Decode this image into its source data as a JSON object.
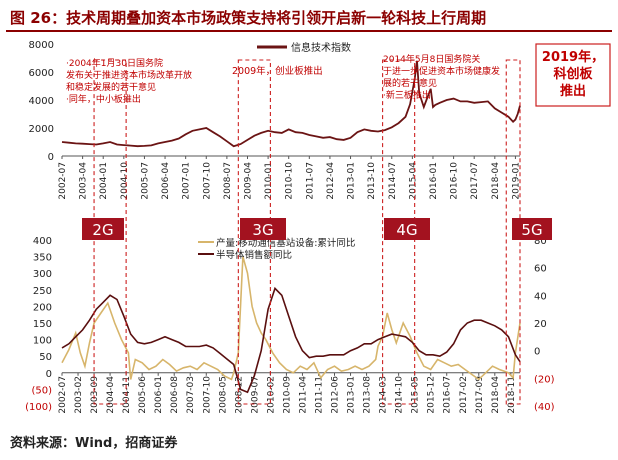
{
  "title": "图 26：技术周期叠加资本市场政策支持将引领开启新一轮科技上行周期",
  "source": "资料来源：Wind，招商证券",
  "colors": {
    "title": "#8b0000",
    "index_line": "#6b1414",
    "semi_line": "#5a0f0f",
    "equip_line": "#d7b56b",
    "dashed_box": "#cc1f1f",
    "gen_label_bg": "#a3121f",
    "callout_text": "#c00000"
  },
  "chart_data": [
    {
      "type": "line",
      "panel": "top",
      "series": [
        {
          "name": "信息技术指数",
          "x": [
            "2002-07",
            "2002-10",
            "2003-01",
            "2003-04",
            "2003-07",
            "2003-10",
            "2004-01",
            "2004-04",
            "2004-07",
            "2004-10",
            "2005-01",
            "2005-04",
            "2005-07",
            "2005-10",
            "2006-01",
            "2006-04",
            "2006-07",
            "2006-10",
            "2007-01",
            "2007-04",
            "2007-07",
            "2007-10",
            "2008-01",
            "2008-04",
            "2008-07",
            "2008-10",
            "2009-01",
            "2009-04",
            "2009-07",
            "2009-10",
            "2010-01",
            "2010-04",
            "2010-07",
            "2010-10",
            "2011-01",
            "2011-04",
            "2011-07",
            "2011-10",
            "2012-01",
            "2012-04",
            "2012-07",
            "2012-10",
            "2013-01",
            "2013-04",
            "2013-07",
            "2013-10",
            "2014-01",
            "2014-04",
            "2014-07",
            "2014-10",
            "2015-01",
            "2015-03",
            "2015-05",
            "2015-06",
            "2015-07",
            "2015-09",
            "2015-12",
            "2016-01",
            "2016-02",
            "2016-04",
            "2016-07",
            "2016-10",
            "2017-01",
            "2017-04",
            "2017-07",
            "2017-10",
            "2018-01",
            "2018-04",
            "2018-07",
            "2018-10",
            "2018-12",
            "2019-01",
            "2019-02",
            "2019-03"
          ],
          "values": [
            1000,
            950,
            900,
            880,
            850,
            820,
            900,
            1000,
            820,
            780,
            740,
            700,
            720,
            760,
            900,
            1000,
            1100,
            1250,
            1550,
            1800,
            1900,
            2000,
            1700,
            1400,
            1050,
            700,
            850,
            1150,
            1450,
            1650,
            1800,
            1700,
            1650,
            1900,
            1700,
            1650,
            1500,
            1400,
            1300,
            1350,
            1200,
            1150,
            1300,
            1700,
            1900,
            1800,
            1750,
            1850,
            2050,
            2350,
            2800,
            3700,
            5500,
            6800,
            4500,
            3500,
            4800,
            3500,
            3650,
            3800,
            4000,
            4100,
            3900,
            3900,
            3800,
            3850,
            3900,
            3400,
            3100,
            2800,
            2450,
            2600,
            3000,
            3600
          ]
        }
      ],
      "yticks": [
        0,
        2000,
        4000,
        6000,
        8000
      ],
      "ylim": [
        0,
        8000
      ],
      "xticks": [
        "2002-07",
        "2003-04",
        "2004-01",
        "2004-10",
        "2005-07",
        "2006-04",
        "2007-01",
        "2007-10",
        "2008-07",
        "2009-04",
        "2010-01",
        "2010-10",
        "2011-07",
        "2012-04",
        "2013-01",
        "2013-10",
        "2014-07",
        "2015-04",
        "2016-01",
        "2016-10",
        "2017-07",
        "2018-04",
        "2019-01"
      ],
      "legend": "top-center"
    },
    {
      "type": "line",
      "panel": "bottom",
      "series": [
        {
          "name": "产量:移动通信基站设备:累计同比",
          "axis": "left",
          "x": [
            "2002-07",
            "2002-10",
            "2003-01",
            "2003-03",
            "2003-05",
            "2003-07",
            "2003-09",
            "2003-12",
            "2004-03",
            "2004-06",
            "2004-09",
            "2004-12",
            "2005-01",
            "2005-03",
            "2005-06",
            "2005-09",
            "2005-12",
            "2006-03",
            "2006-06",
            "2006-09",
            "2006-12",
            "2007-03",
            "2007-06",
            "2007-09",
            "2007-12",
            "2008-03",
            "2008-06",
            "2008-09",
            "2008-10",
            "2008-12",
            "2009-02",
            "2009-04",
            "2009-06",
            "2009-08",
            "2009-10",
            "2009-12",
            "2010-03",
            "2010-06",
            "2010-09",
            "2010-12",
            "2011-03",
            "2011-06",
            "2011-09",
            "2011-12",
            "2012-03",
            "2012-06",
            "2012-09",
            "2012-12",
            "2013-03",
            "2013-06",
            "2013-09",
            "2013-12",
            "2014-01",
            "2014-03",
            "2014-05",
            "2014-07",
            "2014-09",
            "2014-12",
            "2015-03",
            "2015-06",
            "2015-09",
            "2015-12",
            "2016-03",
            "2016-06",
            "2016-09",
            "2016-12",
            "2017-03",
            "2017-06",
            "2017-09",
            "2017-12",
            "2018-03",
            "2018-06",
            "2018-08",
            "2018-10",
            "2018-12",
            "2019-01",
            "2019-03"
          ],
          "values": [
            30,
            70,
            120,
            60,
            20,
            90,
            150,
            180,
            210,
            150,
            100,
            60,
            -20,
            40,
            30,
            10,
            20,
            40,
            25,
            5,
            15,
            20,
            10,
            30,
            20,
            10,
            -10,
            -20,
            0,
            60,
            350,
            300,
            200,
            150,
            120,
            100,
            60,
            30,
            10,
            0,
            20,
            10,
            30,
            -15,
            10,
            20,
            5,
            10,
            20,
            10,
            20,
            40,
            80,
            110,
            180,
            130,
            90,
            150,
            110,
            60,
            20,
            10,
            40,
            30,
            20,
            25,
            10,
            -5,
            -20,
            0,
            20,
            10,
            5,
            0,
            -15,
            60,
            150
          ]
        },
        {
          "name": "半导体销售额同比",
          "axis": "right",
          "x": [
            "2002-07",
            "2002-10",
            "2003-01",
            "2003-04",
            "2003-07",
            "2003-10",
            "2004-01",
            "2004-04",
            "2004-07",
            "2004-10",
            "2005-01",
            "2005-04",
            "2005-07",
            "2005-10",
            "2006-01",
            "2006-04",
            "2006-07",
            "2006-10",
            "2007-01",
            "2007-04",
            "2007-07",
            "2007-10",
            "2008-01",
            "2008-04",
            "2008-07",
            "2008-10",
            "2009-01",
            "2009-04",
            "2009-07",
            "2009-10",
            "2010-01",
            "2010-04",
            "2010-07",
            "2010-10",
            "2011-01",
            "2011-04",
            "2011-07",
            "2011-10",
            "2012-01",
            "2012-04",
            "2012-07",
            "2012-10",
            "2013-01",
            "2013-04",
            "2013-07",
            "2013-10",
            "2014-01",
            "2014-04",
            "2014-07",
            "2014-10",
            "2015-01",
            "2015-04",
            "2015-07",
            "2015-10",
            "2016-01",
            "2016-04",
            "2016-07",
            "2016-10",
            "2017-01",
            "2017-04",
            "2017-07",
            "2017-10",
            "2018-01",
            "2018-04",
            "2018-07",
            "2018-10",
            "2019-01",
            "2019-03"
          ],
          "values": [
            2,
            5,
            10,
            15,
            22,
            30,
            35,
            40,
            37,
            25,
            12,
            6,
            5,
            6,
            8,
            10,
            8,
            6,
            3,
            3,
            3,
            4,
            2,
            -2,
            -6,
            -10,
            -28,
            -30,
            -18,
            0,
            30,
            45,
            40,
            25,
            10,
            0,
            -5,
            -4,
            -4,
            -3,
            -3,
            -3,
            0,
            2,
            5,
            5,
            8,
            10,
            12,
            11,
            10,
            6,
            0,
            -3,
            -3,
            -4,
            -1,
            5,
            15,
            20,
            22,
            22,
            20,
            18,
            15,
            10,
            -3,
            -8
          ]
        }
      ],
      "yticks_left": [
        -100,
        -50,
        0,
        50,
        100,
        150,
        200,
        250,
        300,
        350,
        400
      ],
      "ylim_left": [
        -100,
        400
      ],
      "yticks_right": [
        -40,
        -20,
        0,
        20,
        40,
        60,
        80
      ],
      "ylim_right": [
        -40,
        80
      ],
      "xticks": [
        "2002-07",
        "2003-02",
        "2003-09",
        "2004-04",
        "2004-11",
        "2005-06",
        "2006-01",
        "2006-08",
        "2007-03",
        "2007-10",
        "2008-05",
        "2008-12",
        "2009-07",
        "2010-02",
        "2010-09",
        "2011-04",
        "2011-11",
        "2012-06",
        "2013-01",
        "2013-08",
        "2014-03",
        "2014-10",
        "2015-05",
        "2015-12",
        "2016-07",
        "2017-02",
        "2017-09",
        "2018-04",
        "2018-11"
      ],
      "legend": "top-center"
    }
  ],
  "annotations": {
    "callout_2004": "·2004年1月30日国务院发布关于推进资本市场改革开放和稳定发展的若干意见\n·同年，中小板推出",
    "callout_2009": "2009年，创业板推出",
    "callout_2014": "2014年5月8日国务院关于进一步促进资本市场健康发展的若干意见\n·新三板推出",
    "callout_2019": "2019年，\n科创板\n推出",
    "gen_2g": "2G",
    "gen_3g": "3G",
    "gen_4g": "4G",
    "gen_5g": "5G"
  }
}
